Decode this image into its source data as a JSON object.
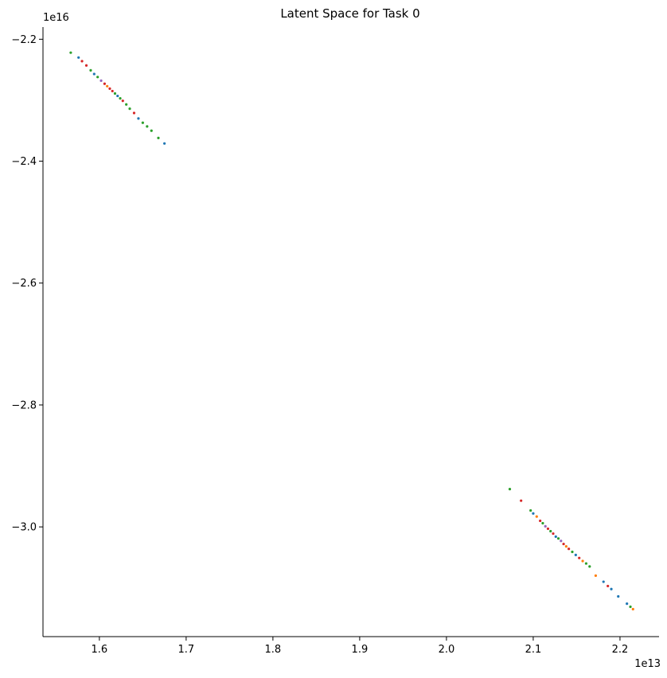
{
  "chart_data": {
    "type": "scatter",
    "title": "Latent Space for Task 0",
    "xlabel": "",
    "ylabel": "",
    "x_offset_text": "1e13",
    "y_offset_text": "1e16",
    "xlim": [
      1.535,
      2.245
    ],
    "ylim": [
      -3.18,
      -2.18
    ],
    "xticks": [
      1.6,
      1.7,
      1.8,
      1.9,
      2.0,
      2.1,
      2.2
    ],
    "xtick_labels": [
      "1.6",
      "1.7",
      "1.8",
      "1.9",
      "2.0",
      "2.1",
      "2.2"
    ],
    "yticks": [
      -2.2,
      -2.4,
      -2.6,
      -2.8,
      -3.0
    ],
    "ytick_labels": [
      "−2.2",
      "−2.4",
      "−2.6",
      "−2.8",
      "−3.0"
    ],
    "grid": false,
    "spines": "left-bottom",
    "colors": [
      "#1f77b4",
      "#ff7f0e",
      "#2ca02c",
      "#d62728",
      "#9467bd"
    ],
    "clusters": [
      {
        "x": [
          1.567,
          1.576,
          1.58,
          1.585,
          1.59,
          1.594,
          1.598,
          1.602,
          1.606,
          1.609,
          1.612,
          1.615,
          1.618,
          1.621,
          1.624,
          1.627,
          1.631,
          1.635,
          1.64,
          1.645,
          1.65,
          1.655,
          1.66,
          1.668,
          1.675
        ],
        "y": [
          -2.222,
          -2.23,
          -2.236,
          -2.243,
          -2.251,
          -2.257,
          -2.262,
          -2.268,
          -2.273,
          -2.277,
          -2.281,
          -2.285,
          -2.289,
          -2.293,
          -2.297,
          -2.301,
          -2.307,
          -2.314,
          -2.321,
          -2.33,
          -2.337,
          -2.343,
          -2.35,
          -2.362,
          -2.371
        ],
        "series": [
          2,
          0,
          3,
          3,
          2,
          0,
          2,
          4,
          3,
          1,
          3,
          3,
          2,
          0,
          2,
          3,
          2,
          2,
          3,
          0,
          2,
          2,
          2,
          2,
          0
        ]
      },
      {
        "x": [
          2.073,
          2.086,
          2.097,
          2.1,
          2.104,
          2.108,
          2.111,
          2.114,
          2.117,
          2.12,
          2.123,
          2.126,
          2.129,
          2.132,
          2.135,
          2.138,
          2.141,
          2.145,
          2.149,
          2.153,
          2.157,
          2.161,
          2.165,
          2.172,
          2.181,
          2.186,
          2.19,
          2.198,
          2.208,
          2.212,
          2.215
        ],
        "y": [
          -2.938,
          -2.957,
          -2.973,
          -2.978,
          -2.983,
          -2.99,
          -2.994,
          -2.999,
          -3.003,
          -3.007,
          -3.011,
          -3.016,
          -3.019,
          -3.023,
          -3.028,
          -3.032,
          -3.036,
          -3.041,
          -3.046,
          -3.051,
          -3.056,
          -3.06,
          -3.065,
          -3.08,
          -3.09,
          -3.097,
          -3.102,
          -3.114,
          -3.126,
          -3.131,
          -3.135
        ],
        "series": [
          2,
          3,
          2,
          0,
          1,
          3,
          2,
          4,
          3,
          2,
          3,
          0,
          2,
          4,
          3,
          1,
          3,
          2,
          0,
          3,
          1,
          2,
          2,
          1,
          0,
          3,
          0,
          0,
          0,
          2,
          1
        ]
      }
    ]
  }
}
